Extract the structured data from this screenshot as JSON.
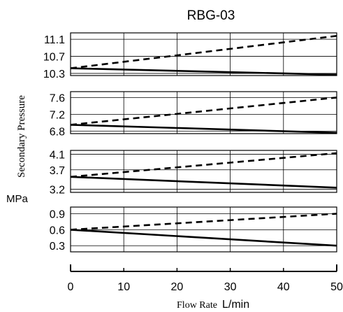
{
  "chart_data": {
    "type": "line",
    "title": "RBG-03",
    "xlabel": "Flow Rate",
    "xunit": "L/min",
    "ylabel": "Secondary Pressure",
    "yunit": "MPa",
    "xlim": [
      0,
      50
    ],
    "x_ticks": [
      "0",
      "10",
      "20",
      "30",
      "40",
      "50"
    ],
    "grid": true,
    "line_colors": {
      "dashed": "#000000",
      "solid": "#000000"
    },
    "panels": [
      {
        "y_ticks": [
          "11.1",
          "10.7",
          "10.3"
        ],
        "tick_values": [
          11.1,
          10.7,
          10.3
        ],
        "ylim": [
          10.25,
          11.25
        ],
        "series": [
          {
            "style": "dashed",
            "x": [
              0,
              50
            ],
            "y": [
              10.42,
              11.18
            ]
          },
          {
            "style": "solid",
            "x": [
              0,
              50
            ],
            "y": [
              10.42,
              10.27
            ]
          }
        ]
      },
      {
        "y_ticks": [
          "7.6",
          "7.2",
          "6.8"
        ],
        "tick_values": [
          7.6,
          7.2,
          6.8
        ],
        "ylim": [
          6.74,
          7.74
        ],
        "series": [
          {
            "style": "dashed",
            "x": [
              0,
              50
            ],
            "y": [
              6.95,
              7.6
            ]
          },
          {
            "style": "solid",
            "x": [
              0,
              50
            ],
            "y": [
              6.95,
              6.76
            ]
          }
        ]
      },
      {
        "y_ticks": [
          "4.1",
          "3.7",
          "3.2"
        ],
        "tick_values": [
          4.1,
          3.7,
          3.2
        ],
        "ylim": [
          3.12,
          4.2
        ],
        "series": [
          {
            "style": "dashed",
            "x": [
              0,
              50
            ],
            "y": [
              3.52,
              4.13
            ]
          },
          {
            "style": "solid",
            "x": [
              0,
              50
            ],
            "y": [
              3.52,
              3.24
            ]
          }
        ]
      },
      {
        "y_ticks": [
          "0.9",
          "0.6",
          "0.3"
        ],
        "tick_values": [
          0.9,
          0.6,
          0.3
        ],
        "ylim": [
          0.185,
          1.025
        ],
        "series": [
          {
            "style": "dashed",
            "x": [
              0,
              50
            ],
            "y": [
              0.6,
              0.9
            ]
          },
          {
            "style": "solid",
            "x": [
              0,
              50
            ],
            "y": [
              0.6,
              0.3
            ]
          }
        ]
      }
    ]
  }
}
